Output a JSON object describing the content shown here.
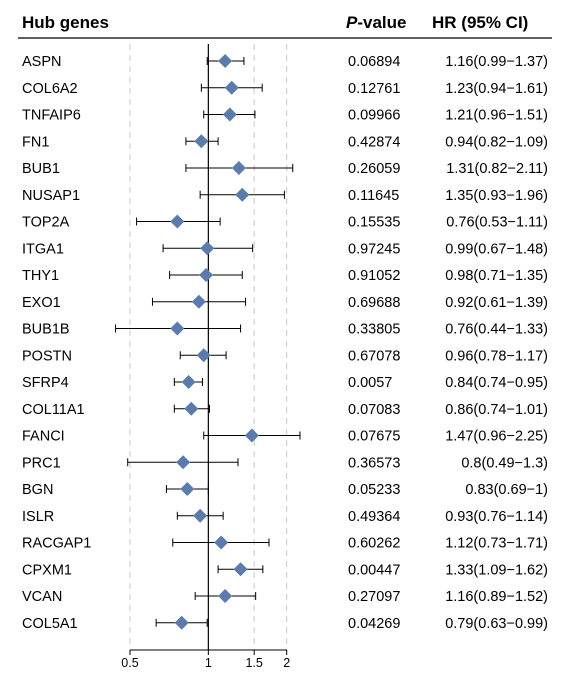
{
  "chart_data": {
    "type": "forest",
    "columns": {
      "gene": "Hub genes",
      "p_value_italic": "P",
      "p_value_suffix": "-value",
      "hr": "HR (95% CI)"
    },
    "x_scale": "log",
    "xlim": [
      0.5,
      2.25
    ],
    "x_ticks": [
      0.5,
      1,
      1.5,
      2
    ],
    "x_tick_labels": [
      "0.5",
      "1",
      "1.5",
      "2"
    ],
    "reference_line": 1,
    "marker_color": "#5b7bad",
    "rows": [
      {
        "gene": "ASPN",
        "p": "0.06894",
        "hr_text": "1.16(0.99−1.37)",
        "hr": 1.16,
        "lo": 0.99,
        "hi": 1.37
      },
      {
        "gene": "COL6A2",
        "p": "0.12761",
        "hr_text": "1.23(0.94−1.61)",
        "hr": 1.23,
        "lo": 0.94,
        "hi": 1.61
      },
      {
        "gene": "TNFAIP6",
        "p": "0.09966",
        "hr_text": "1.21(0.96−1.51)",
        "hr": 1.21,
        "lo": 0.96,
        "hi": 1.51
      },
      {
        "gene": "FN1",
        "p": "0.42874",
        "hr_text": "0.94(0.82−1.09)",
        "hr": 0.94,
        "lo": 0.82,
        "hi": 1.09
      },
      {
        "gene": "BUB1",
        "p": "0.26059",
        "hr_text": "1.31(0.82−2.11)",
        "hr": 1.31,
        "lo": 0.82,
        "hi": 2.11
      },
      {
        "gene": "NUSAP1",
        "p": "0.11645",
        "hr_text": "1.35(0.93−1.96)",
        "hr": 1.35,
        "lo": 0.93,
        "hi": 1.96
      },
      {
        "gene": "TOP2A",
        "p": "0.15535",
        "hr_text": "0.76(0.53−1.11)",
        "hr": 0.76,
        "lo": 0.53,
        "hi": 1.11
      },
      {
        "gene": "ITGA1",
        "p": "0.97245",
        "hr_text": "0.99(0.67−1.48)",
        "hr": 0.99,
        "lo": 0.67,
        "hi": 1.48
      },
      {
        "gene": "THY1",
        "p": "0.91052",
        "hr_text": "0.98(0.71−1.35)",
        "hr": 0.98,
        "lo": 0.71,
        "hi": 1.35
      },
      {
        "gene": "EXO1",
        "p": "0.69688",
        "hr_text": "0.92(0.61−1.39)",
        "hr": 0.92,
        "lo": 0.61,
        "hi": 1.39
      },
      {
        "gene": "BUB1B",
        "p": "0.33805",
        "hr_text": "0.76(0.44−1.33)",
        "hr": 0.76,
        "lo": 0.44,
        "hi": 1.33
      },
      {
        "gene": "POSTN",
        "p": "0.67078",
        "hr_text": "0.96(0.78−1.17)",
        "hr": 0.96,
        "lo": 0.78,
        "hi": 1.17
      },
      {
        "gene": "SFRP4",
        "p": "0.0057",
        "hr_text": "0.84(0.74−0.95)",
        "hr": 0.84,
        "lo": 0.74,
        "hi": 0.95
      },
      {
        "gene": "COL11A1",
        "p": "0.07083",
        "hr_text": "0.86(0.74−1.01)",
        "hr": 0.86,
        "lo": 0.74,
        "hi": 1.01
      },
      {
        "gene": "FANCI",
        "p": "0.07675",
        "hr_text": "1.47(0.96−2.25)",
        "hr": 1.47,
        "lo": 0.96,
        "hi": 2.25
      },
      {
        "gene": "PRC1",
        "p": "0.36573",
        "hr_text": "0.8(0.49−1.3)",
        "hr": 0.8,
        "lo": 0.49,
        "hi": 1.3
      },
      {
        "gene": "BGN",
        "p": "0.05233",
        "hr_text": "0.83(0.69−1)",
        "hr": 0.83,
        "lo": 0.69,
        "hi": 1
      },
      {
        "gene": "ISLR",
        "p": "0.49364",
        "hr_text": "0.93(0.76−1.14)",
        "hr": 0.93,
        "lo": 0.76,
        "hi": 1.14
      },
      {
        "gene": "RACGAP1",
        "p": "0.60262",
        "hr_text": "1.12(0.73−1.71)",
        "hr": 1.12,
        "lo": 0.73,
        "hi": 1.71
      },
      {
        "gene": "CPXM1",
        "p": "0.00447",
        "hr_text": "1.33(1.09−1.62)",
        "hr": 1.33,
        "lo": 1.09,
        "hi": 1.62
      },
      {
        "gene": "VCAN",
        "p": "0.27097",
        "hr_text": "1.16(0.89−1.52)",
        "hr": 1.16,
        "lo": 0.89,
        "hi": 1.52
      },
      {
        "gene": "COL5A1",
        "p": "0.04269",
        "hr_text": "0.79(0.63−0.99)",
        "hr": 0.79,
        "lo": 0.63,
        "hi": 0.99
      }
    ]
  }
}
